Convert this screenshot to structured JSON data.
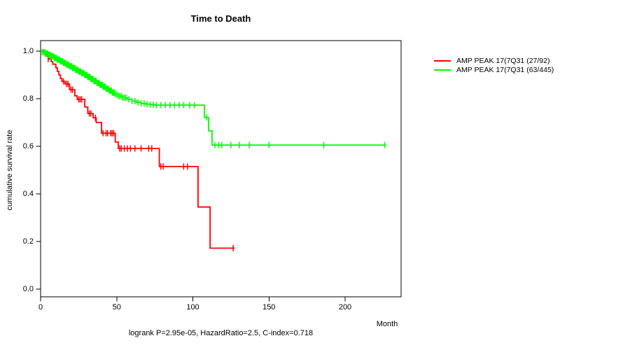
{
  "title": "Time to Death",
  "x_axis": {
    "label": "Month",
    "ticks": [
      0,
      50,
      100,
      150,
      200
    ]
  },
  "y_axis": {
    "label": "cumulative survival rate",
    "ticks": [
      "0.0",
      "0.2",
      "0.4",
      "0.6",
      "0.8",
      "1.0"
    ]
  },
  "footer": "logrank P=2.95e-05, HazardRatio=2.5, C-index=0.718",
  "legend": [
    {
      "label": "AMP PEAK 17(7Q31 (27/92)",
      "color": "#ff0000"
    },
    {
      "label": "AMP PEAK 17(7Q31 (63/445)",
      "color": "#00ff00"
    }
  ],
  "chart_data": {
    "type": "line",
    "subtype": "kaplan-meier-step",
    "title": "Time to Death",
    "xlabel": "Month",
    "ylabel": "cumulative survival rate",
    "xlim": [
      0,
      236
    ],
    "ylim": [
      0,
      1.04
    ],
    "grid": false,
    "legend_position": "right-outside",
    "annotation": "logrank P=2.95e-05, HazardRatio=2.5, C-index=0.718",
    "series": [
      {
        "name": "AMP PEAK 17(7Q31 (27/92)",
        "color": "#ff0000",
        "events": "27/92",
        "points": [
          [
            0,
            1.0
          ],
          [
            2,
            0.989
          ],
          [
            4,
            0.978
          ],
          [
            5,
            0.967
          ],
          [
            7,
            0.956
          ],
          [
            8,
            0.945
          ],
          [
            10,
            0.93
          ],
          [
            11,
            0.915
          ],
          [
            12,
            0.9
          ],
          [
            13,
            0.885
          ],
          [
            14,
            0.873
          ],
          [
            16,
            0.862
          ],
          [
            19,
            0.838
          ],
          [
            22.5,
            0.812
          ],
          [
            24,
            0.797
          ],
          [
            29,
            0.765
          ],
          [
            31,
            0.738
          ],
          [
            34.5,
            0.72
          ],
          [
            36.5,
            0.7
          ],
          [
            40,
            0.655
          ],
          [
            49,
            0.618
          ],
          [
            51,
            0.591
          ],
          [
            78,
            0.515
          ],
          [
            103.4,
            0.345
          ],
          [
            111.3,
            0.172
          ],
          [
            127.4,
            0.172
          ]
        ],
        "censor_months": [
          5,
          15,
          17,
          18,
          20,
          21,
          25,
          26,
          27,
          32,
          33,
          36,
          41,
          43,
          44,
          46,
          47,
          48,
          52,
          53,
          55,
          57,
          59,
          62,
          66,
          71,
          73,
          79,
          80.5,
          94,
          96.5,
          126.5
        ]
      },
      {
        "name": "AMP PEAK 17(7Q31 (63/445)",
        "color": "#00ff00",
        "events": "63/445",
        "points": [
          [
            0,
            1.0
          ],
          [
            1,
            0.996
          ],
          [
            3,
            0.99
          ],
          [
            5,
            0.984
          ],
          [
            7,
            0.978
          ],
          [
            9,
            0.971
          ],
          [
            11,
            0.964
          ],
          [
            13,
            0.957
          ],
          [
            15,
            0.95
          ],
          [
            17,
            0.943
          ],
          [
            19,
            0.936
          ],
          [
            21,
            0.929
          ],
          [
            23,
            0.921
          ],
          [
            25,
            0.914
          ],
          [
            27,
            0.907
          ],
          [
            29,
            0.899
          ],
          [
            31,
            0.891
          ],
          [
            33,
            0.883
          ],
          [
            35,
            0.874
          ],
          [
            37,
            0.866
          ],
          [
            39,
            0.858
          ],
          [
            41,
            0.85
          ],
          [
            43,
            0.842
          ],
          [
            45,
            0.834
          ],
          [
            47,
            0.826
          ],
          [
            49,
            0.818
          ],
          [
            51,
            0.811
          ],
          [
            54,
            0.804
          ],
          [
            57,
            0.797
          ],
          [
            60,
            0.79
          ],
          [
            63,
            0.784
          ],
          [
            66,
            0.78
          ],
          [
            69,
            0.777
          ],
          [
            72,
            0.775
          ],
          [
            75,
            0.773
          ],
          [
            107.6,
            0.721
          ],
          [
            110.3,
            0.665
          ],
          [
            112.6,
            0.605
          ],
          [
            227,
            0.605
          ]
        ],
        "censor_months": [
          1,
          2,
          2.5,
          3,
          3.5,
          4,
          4.5,
          5,
          5.5,
          6,
          6.5,
          7,
          7.5,
          8,
          8.5,
          9,
          9.5,
          10,
          10.5,
          11,
          11.5,
          12,
          12.5,
          13,
          13.5,
          14,
          14.5,
          15,
          15.5,
          16,
          16.5,
          17,
          17.5,
          18,
          18.5,
          19,
          19.5,
          20,
          20.5,
          21,
          21.5,
          22,
          22.5,
          23,
          23.5,
          24,
          24.5,
          25,
          25.5,
          26,
          26.5,
          27,
          27.5,
          28,
          28.5,
          29,
          29.5,
          30,
          30.5,
          31,
          31.5,
          32,
          32.5,
          33,
          33.5,
          34,
          34.5,
          35,
          35.5,
          36,
          36.5,
          37,
          37.5,
          38,
          38.5,
          39,
          39.5,
          40,
          40.5,
          41,
          41.5,
          42,
          42.5,
          43,
          43.5,
          44,
          44.5,
          45,
          45.5,
          46,
          46.5,
          47,
          47.5,
          48,
          48.5,
          49,
          50,
          51,
          52,
          53,
          54,
          55,
          56,
          58,
          60,
          62,
          64,
          66,
          68,
          70,
          72,
          74,
          76,
          79,
          82,
          85,
          88,
          91,
          94,
          98,
          101,
          109,
          114.5,
          117,
          119,
          125,
          130.5,
          137,
          150,
          186,
          226
        ]
      }
    ]
  }
}
